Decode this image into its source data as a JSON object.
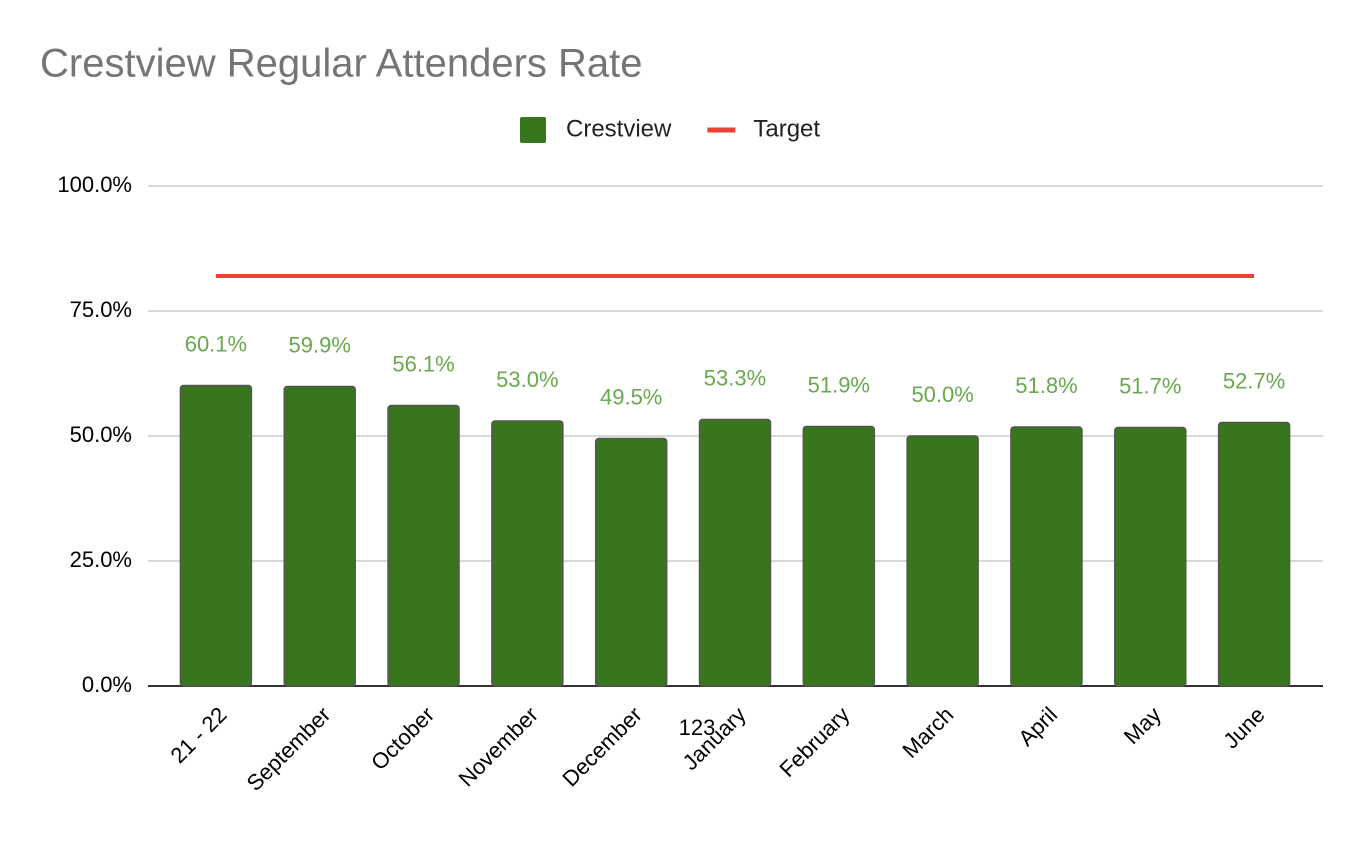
{
  "chart_data": {
    "type": "bar",
    "title": "Crestview Regular Attenders Rate",
    "categories": [
      "21 - 22",
      "September",
      "October",
      "November",
      "December",
      "January",
      "February",
      "March",
      "April",
      "May",
      "June"
    ],
    "series": [
      {
        "name": "Crestview",
        "type": "bar",
        "color": "#38761d",
        "label_color": "#6aa84f",
        "values": [
          60.1,
          59.9,
          56.1,
          53.0,
          49.5,
          53.3,
          51.9,
          50.0,
          51.8,
          51.7,
          52.7
        ],
        "value_labels": [
          "60.1%",
          "59.9%",
          "56.1%",
          "53.0%",
          "49.5%",
          "53.3%",
          "51.9%",
          "50.0%",
          "51.8%",
          "51.7%",
          "52.7%"
        ]
      },
      {
        "name": "Target",
        "type": "line",
        "color": "#ea4335",
        "values": [
          82,
          82,
          82,
          82,
          82,
          82,
          82,
          82,
          82,
          82,
          82
        ]
      }
    ],
    "ylim": [
      0,
      100
    ],
    "yticks": [
      {
        "value": 0,
        "label": "0.0%"
      },
      {
        "value": 25,
        "label": "25.0%"
      },
      {
        "value": 50,
        "label": "50.0%"
      },
      {
        "value": 75,
        "label": "75.0%"
      },
      {
        "value": 100,
        "label": "100.0%"
      }
    ],
    "grid": true,
    "legend": "top",
    "annotation": "123"
  }
}
